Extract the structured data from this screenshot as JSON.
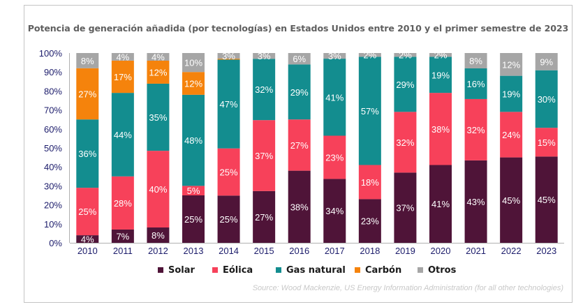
{
  "chart_data": {
    "type": "bar",
    "stacked": true,
    "normalized": true,
    "title": "Potencia de generación añadida (por tecnologías) en Estados Unidos entre 2010 y el primer semestre de 2023",
    "xlabel": "",
    "ylabel": "",
    "ylim": [
      0,
      100
    ],
    "yticks": [
      "0%",
      "10%",
      "20%",
      "30%",
      "40%",
      "50%",
      "60%",
      "70%",
      "80%",
      "90%",
      "100%"
    ],
    "categories": [
      "2010",
      "2011",
      "2012",
      "2013",
      "2014",
      "2015",
      "2016",
      "2017",
      "2018",
      "2019",
      "2020",
      "2021",
      "2022",
      "2023"
    ],
    "series": [
      {
        "name": "Solar",
        "color": "#4f1438",
        "values": [
          4,
          7,
          8,
          25,
          25,
          27,
          38,
          34,
          23,
          37,
          41,
          43,
          45,
          45
        ]
      },
      {
        "name": "Eólica",
        "color": "#f7415a",
        "values": [
          25,
          28,
          40,
          5,
          25,
          37,
          27,
          23,
          18,
          32,
          38,
          32,
          24,
          15
        ]
      },
      {
        "name": "Gas natural",
        "color": "#138d8f",
        "values": [
          36,
          44,
          35,
          48,
          47,
          32,
          29,
          41,
          57,
          29,
          19,
          16,
          19,
          30
        ]
      },
      {
        "name": "Carbón",
        "color": "#f5830c",
        "values": [
          27,
          17,
          12,
          12,
          0.5,
          0,
          0,
          0,
          0,
          0,
          0,
          0,
          0,
          0
        ]
      },
      {
        "name": "Otros",
        "color": "#a6a6a6",
        "values": [
          8,
          4,
          4,
          10,
          3,
          3,
          6,
          3,
          2,
          2,
          2,
          8,
          12,
          9
        ]
      }
    ],
    "data_labels": true,
    "label_format": "{v}%",
    "grid": false,
    "legend_position": "bottom",
    "source": "Source: Wood Mackenzie, US Energy Information Administration (for all other technologies)"
  }
}
